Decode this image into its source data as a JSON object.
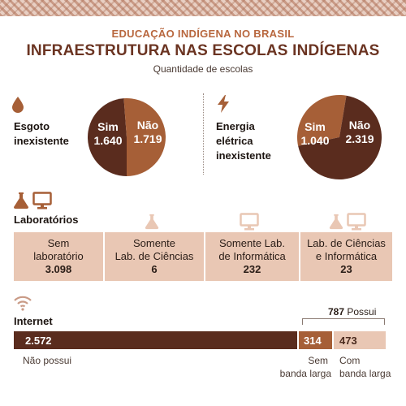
{
  "header": {
    "kicker": "EDUCAÇÃO INDÍGENA NO BRASIL",
    "title": "INFRAESTRUTURA NAS ESCOLAS INDÍGENAS",
    "subtitle": "Quantidade de escolas"
  },
  "colors": {
    "dark_brown": "#5a2c1e",
    "medium_brown": "#a65f37",
    "light_peach": "#e9c7b4",
    "accent": "#b8673e"
  },
  "icons": [
    "drop-icon",
    "lightning-icon",
    "flask-icon",
    "monitor-icon",
    "wifi-icon"
  ],
  "chart_data": [
    {
      "type": "pie",
      "title": "Esgoto inexistente",
      "slices": [
        {
          "label": "Sim",
          "value": 1640,
          "display": "1.640",
          "color": "#5a2c1e"
        },
        {
          "label": "Não",
          "value": 1719,
          "display": "1.719",
          "color": "#a65f37"
        }
      ]
    },
    {
      "type": "pie",
      "title": "Energia elétrica inexistente",
      "slices": [
        {
          "label": "Sim",
          "value": 1040,
          "display": "1.040",
          "color": "#a65f37"
        },
        {
          "label": "Não",
          "value": 2319,
          "display": "2.319",
          "color": "#5a2c1e"
        }
      ]
    },
    {
      "type": "table",
      "title": "Laboratórios",
      "rows": [
        {
          "label_line1": "Sem",
          "label_line2": "laboratório",
          "value": 3098,
          "display": "3.098"
        },
        {
          "label_line1": "Somente",
          "label_line2": "Lab. de Ciências",
          "value": 6,
          "display": "6"
        },
        {
          "label_line1": "Somente Lab.",
          "label_line2": "de Informática",
          "value": 232,
          "display": "232"
        },
        {
          "label_line1": "Lab. de Ciências",
          "label_line2": "e Informática",
          "value": 23,
          "display": "23"
        }
      ]
    },
    {
      "type": "bar",
      "title": "Internet",
      "segments": [
        {
          "label": "Não possui",
          "value": 2572,
          "display": "2.572",
          "color": "#5a2c1e"
        },
        {
          "label_line1": "Sem",
          "label_line2": "banda larga",
          "value": 314,
          "display": "314",
          "color": "#a65f37"
        },
        {
          "label_line1": "Com",
          "label_line2": "banda larga",
          "value": 473,
          "display": "473",
          "color": "#e9c7b4"
        }
      ],
      "group_annotation": {
        "value": "787",
        "text": "Possui"
      }
    }
  ]
}
